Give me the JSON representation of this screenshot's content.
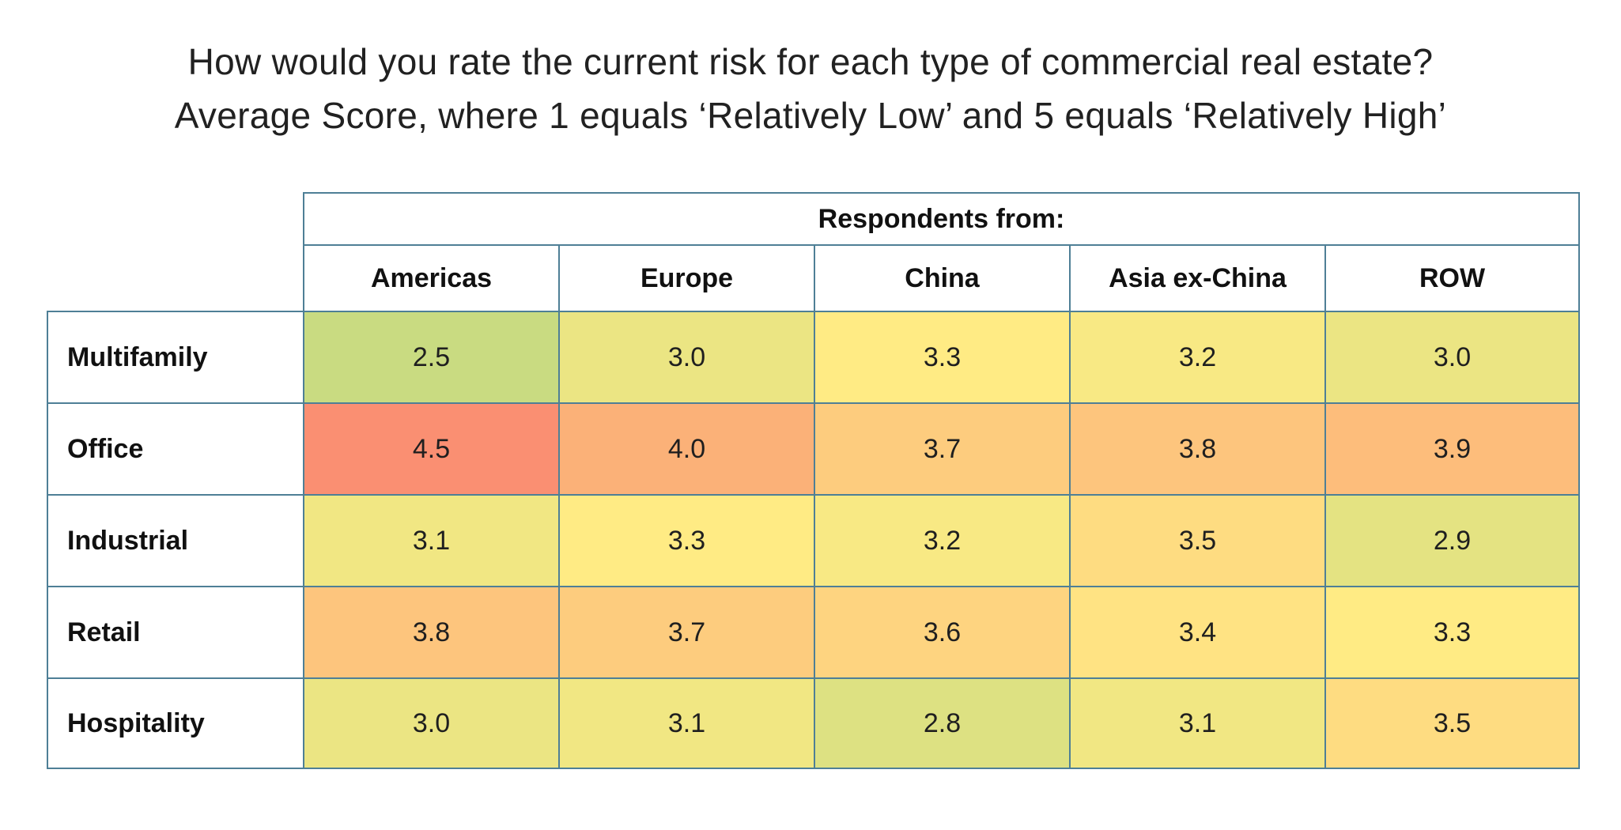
{
  "title": {
    "line1": "How would you rate the current risk for each type of commercial real estate?",
    "line2": "Average Score, where 1 equals ‘Relatively Low’ and 5 equals ‘Relatively High’"
  },
  "table": {
    "group_header": "Respondents from:",
    "columns": [
      "Americas",
      "Europe",
      "China",
      "Asia ex-China",
      "ROW"
    ],
    "rows": [
      {
        "label": "Multifamily",
        "values": [
          "2.5",
          "3.0",
          "3.3",
          "3.2",
          "3.0"
        ],
        "colors": [
          "#C9DB81",
          "#EBE583",
          "#FFEB84",
          "#F8E984",
          "#EBE583"
        ]
      },
      {
        "label": "Office",
        "values": [
          "4.5",
          "4.0",
          "3.7",
          "3.8",
          "3.9"
        ],
        "colors": [
          "#FA8F72",
          "#FBB178",
          "#FDCC7E",
          "#FDC57D",
          "#FDBD7B"
        ]
      },
      {
        "label": "Industrial",
        "values": [
          "3.1",
          "3.3",
          "3.2",
          "3.5",
          "2.9"
        ],
        "colors": [
          "#F1E783",
          "#FFEB84",
          "#F8E984",
          "#FEDC81",
          "#E4E382"
        ]
      },
      {
        "label": "Retail",
        "values": [
          "3.8",
          "3.7",
          "3.6",
          "3.4",
          "3.3"
        ],
        "colors": [
          "#FDC57D",
          "#FDCC7E",
          "#FED480",
          "#FFE383",
          "#FFEB84"
        ]
      },
      {
        "label": "Hospitality",
        "values": [
          "3.0",
          "3.1",
          "2.8",
          "3.1",
          "3.5"
        ],
        "colors": [
          "#EBE583",
          "#F1E783",
          "#DDE182",
          "#F1E783",
          "#FEDC81"
        ]
      }
    ],
    "border_color": "#4E7F96"
  },
  "chart_data": {
    "type": "heatmap",
    "title": "How would you rate the current risk for each type of commercial real estate?",
    "subtitle": "Average Score, where 1 equals ‘Relatively Low’ and 5 equals ‘Relatively High’",
    "columns_label": "Respondents from:",
    "categories": [
      "Americas",
      "Europe",
      "China",
      "Asia ex-China",
      "ROW"
    ],
    "series": [
      {
        "name": "Multifamily",
        "values": [
          2.5,
          3.0,
          3.3,
          3.2,
          3.0
        ]
      },
      {
        "name": "Office",
        "values": [
          4.5,
          4.0,
          3.7,
          3.8,
          3.9
        ]
      },
      {
        "name": "Industrial",
        "values": [
          3.1,
          3.3,
          3.2,
          3.5,
          2.9
        ]
      },
      {
        "name": "Retail",
        "values": [
          3.8,
          3.7,
          3.6,
          3.4,
          3.3
        ]
      },
      {
        "name": "Hospitality",
        "values": [
          3.0,
          3.1,
          2.8,
          3.1,
          3.5
        ]
      }
    ],
    "scale": {
      "min": 1,
      "mid": 3.3,
      "max": 5,
      "low_color": "#63BE7B",
      "mid_color": "#FFEB84",
      "high_color": "#F8696B"
    },
    "legend_position": "none",
    "grid": true
  }
}
